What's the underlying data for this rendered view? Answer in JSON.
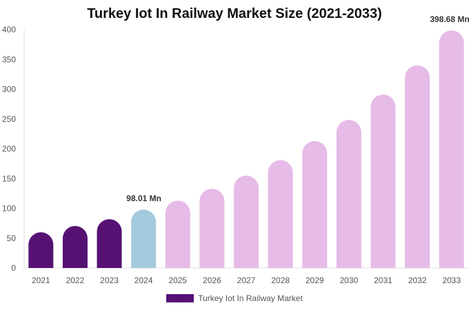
{
  "chart_data": {
    "type": "bar",
    "title": "Turkey Iot In Railway Market Size (2021-2033)",
    "categories": [
      "2021",
      "2022",
      "2023",
      "2024",
      "2025",
      "2026",
      "2027",
      "2028",
      "2029",
      "2030",
      "2031",
      "2032",
      "2033"
    ],
    "series": [
      {
        "name": "Turkey Iot In Railway Market",
        "values": [
          60,
          70.5,
          82,
          98.01,
          113,
          133,
          155,
          181,
          213,
          248.5,
          291,
          340,
          398.68
        ]
      }
    ],
    "data_labels": [
      {
        "index": 3,
        "text": "98.01 Mn"
      },
      {
        "index": 12,
        "text": "398.68 Mn"
      }
    ],
    "ylim": [
      0,
      400
    ],
    "yticks": [
      0,
      50,
      100,
      150,
      200,
      250,
      300,
      350,
      400
    ],
    "grid": false,
    "legend": "bottom",
    "colors": {
      "historical": "#561273",
      "base_year": "#a3cadd",
      "forecast": "#e6bbe8"
    }
  }
}
